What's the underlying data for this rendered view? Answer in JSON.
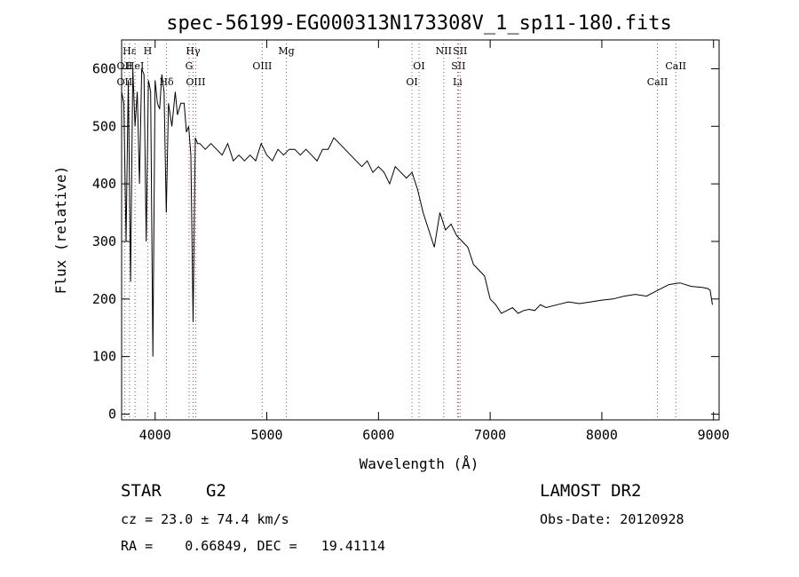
{
  "chart_data": {
    "type": "line",
    "title": "spec-56199-EG000313N173308V_1_sp11-180.fits",
    "xlabel": "Wavelength (Å)",
    "ylabel": "Flux (relative)",
    "xlim": [
      3700,
      9050
    ],
    "ylim": [
      -10,
      650
    ],
    "xticks": [
      4000,
      5000,
      6000,
      7000,
      8000,
      9000
    ],
    "yticks": [
      0,
      100,
      200,
      300,
      400,
      500,
      600
    ],
    "grid": false,
    "line_color": "#000000",
    "marker_color": "#a05050",
    "line_markers": [
      {
        "label": "Hε",
        "x": 3770,
        "row": 0
      },
      {
        "label": "H",
        "x": 3934,
        "row": 0
      },
      {
        "label": "OII",
        "x": 3727,
        "row": 1
      },
      {
        "label": "HeI",
        "x": 3820,
        "row": 1
      },
      {
        "label": "G",
        "x": 4304,
        "row": 1
      },
      {
        "label": "OIII",
        "x": 4959,
        "row": 1
      },
      {
        "label": "OI",
        "x": 6363,
        "row": 1
      },
      {
        "label": "SII",
        "x": 6716,
        "row": 1
      },
      {
        "label": "CaII",
        "x": 8662,
        "row": 1
      },
      {
        "label": "OII",
        "x": 3727,
        "row": 2
      },
      {
        "label": "Hδ",
        "x": 4102,
        "row": 2
      },
      {
        "label": "OIII",
        "x": 4363,
        "row": 2
      },
      {
        "label": "OI",
        "x": 6300,
        "row": 2
      },
      {
        "label": "Li",
        "x": 6708,
        "row": 2
      },
      {
        "label": "CaII",
        "x": 8498,
        "row": 2
      },
      {
        "label": "Hγ",
        "x": 4340,
        "row": 0
      },
      {
        "label": "Mg",
        "x": 5175,
        "row": 0
      },
      {
        "label": "NII",
        "x": 6584,
        "row": 0
      },
      {
        "label": "SII",
        "x": 6731,
        "row": 0
      }
    ],
    "series": [
      {
        "x": [
          3700,
          3720,
          3740,
          3760,
          3780,
          3800,
          3820,
          3840,
          3860,
          3880,
          3900,
          3920,
          3940,
          3960,
          3980,
          4000,
          4020,
          4040,
          4060,
          4080,
          4100,
          4120,
          4150,
          4180,
          4200,
          4230,
          4260,
          4280,
          4300,
          4320,
          4340,
          4360,
          4380,
          4400,
          4450,
          4500,
          4550,
          4600,
          4650,
          4700,
          4750,
          4800,
          4850,
          4900,
          4950,
          5000,
          5050,
          5100,
          5150,
          5200,
          5250,
          5300,
          5350,
          5400,
          5450,
          5500,
          5550,
          5600,
          5650,
          5700,
          5750,
          5800,
          5850,
          5900,
          5950,
          6000,
          6050,
          6100,
          6150,
          6200,
          6250,
          6300,
          6350,
          6400,
          6450,
          6500,
          6550,
          6600,
          6650,
          6700,
          6750,
          6800,
          6850,
          6900,
          6950,
          7000,
          7050,
          7100,
          7150,
          7200,
          7250,
          7300,
          7350,
          7400,
          7450,
          7500,
          7600,
          7700,
          7800,
          7900,
          8000,
          8100,
          8200,
          8300,
          8400,
          8500,
          8600,
          8700,
          8800,
          8900,
          8950,
          8970,
          8990
        ],
        "values": [
          560,
          540,
          300,
          580,
          230,
          600,
          500,
          560,
          400,
          600,
          590,
          300,
          580,
          560,
          100,
          580,
          540,
          530,
          590,
          560,
          350,
          540,
          500,
          560,
          520,
          540,
          540,
          490,
          500,
          450,
          160,
          480,
          470,
          470,
          460,
          470,
          460,
          450,
          470,
          440,
          450,
          440,
          450,
          440,
          470,
          450,
          440,
          460,
          450,
          460,
          460,
          450,
          460,
          450,
          440,
          460,
          460,
          480,
          470,
          460,
          450,
          440,
          430,
          440,
          420,
          430,
          420,
          400,
          430,
          420,
          410,
          420,
          390,
          350,
          320,
          290,
          350,
          320,
          330,
          310,
          300,
          290,
          260,
          250,
          240,
          200,
          190,
          175,
          180,
          185,
          175,
          180,
          182,
          180,
          190,
          185,
          190,
          195,
          192,
          195,
          198,
          200,
          205,
          208,
          205,
          215,
          225,
          228,
          222,
          220,
          218,
          215,
          190
        ]
      }
    ]
  },
  "info": {
    "class_label": "STAR",
    "subclass_label": "G2",
    "survey_label": "LAMOST DR2",
    "redshift_line": "cz = 23.0 ± 74.4 km/s",
    "obsdate_line": "Obs-Date: 20120928",
    "coords_line": "RA =    0.66849, DEC =   19.41114"
  }
}
